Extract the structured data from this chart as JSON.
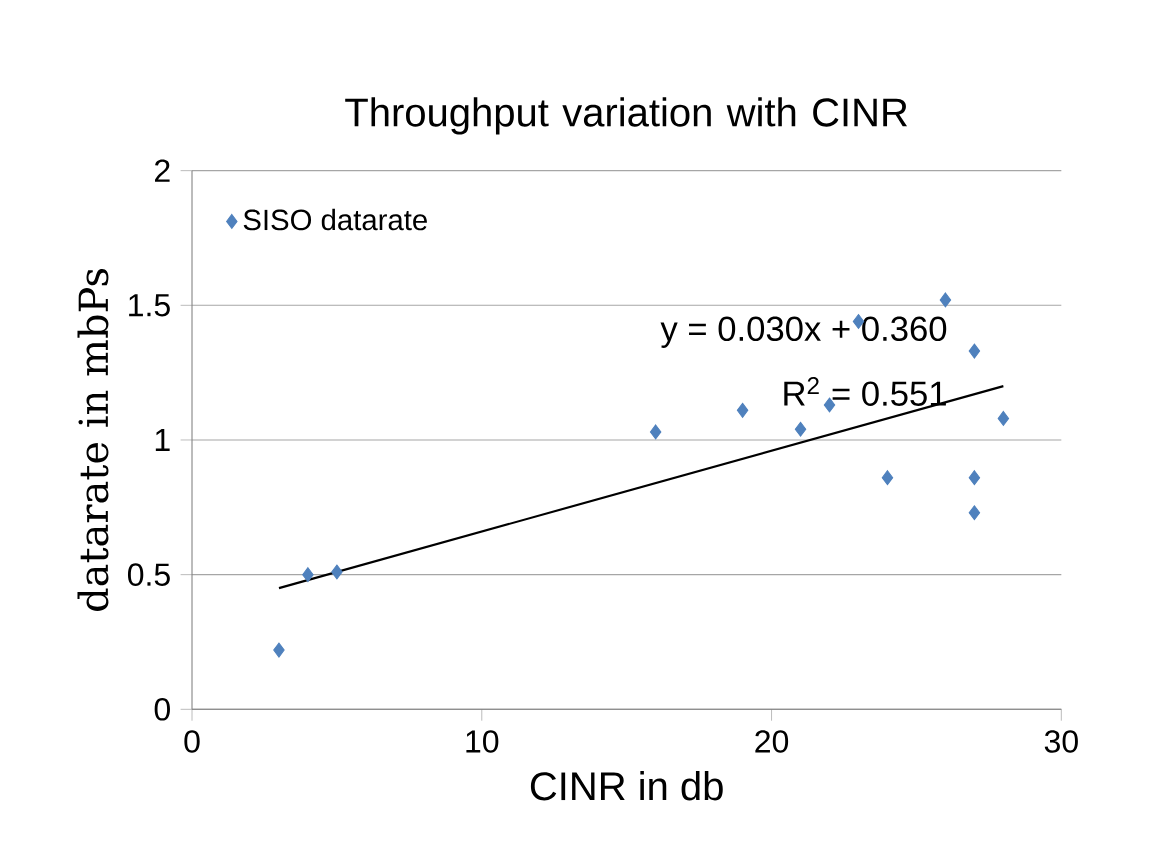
{
  "chart_data": {
    "type": "scatter",
    "title": "Throughput variation with CINR",
    "xlabel": "CINR in db",
    "ylabel": "datarate in mbPs",
    "xlim": [
      0,
      30
    ],
    "xticks": [
      0,
      10,
      20,
      30
    ],
    "ylim": [
      0,
      2
    ],
    "yticks": [
      0,
      0.5,
      1,
      1.5,
      2
    ],
    "grid": "y",
    "legend": "top left",
    "marker": "diamond",
    "series": [
      {
        "name": "SISO datarate",
        "color": "#4f81bd",
        "x": [
          3,
          4,
          5,
          16,
          19,
          21,
          22,
          23,
          24,
          26,
          27,
          27,
          27,
          28
        ],
        "values": [
          0.22,
          0.5,
          0.51,
          1.03,
          1.11,
          1.04,
          1.13,
          1.44,
          0.86,
          1.52,
          1.33,
          0.86,
          0.73,
          1.08
        ]
      },
      {
        "type": "line",
        "marker": "none",
        "color": "#000000",
        "x": [
          3,
          28
        ],
        "values": [
          0.45,
          1.2
        ]
      }
    ],
    "annotations": [
      "y = 0.030x + 0.360",
      "R$^{2}$ = 0.551"
    ]
  }
}
